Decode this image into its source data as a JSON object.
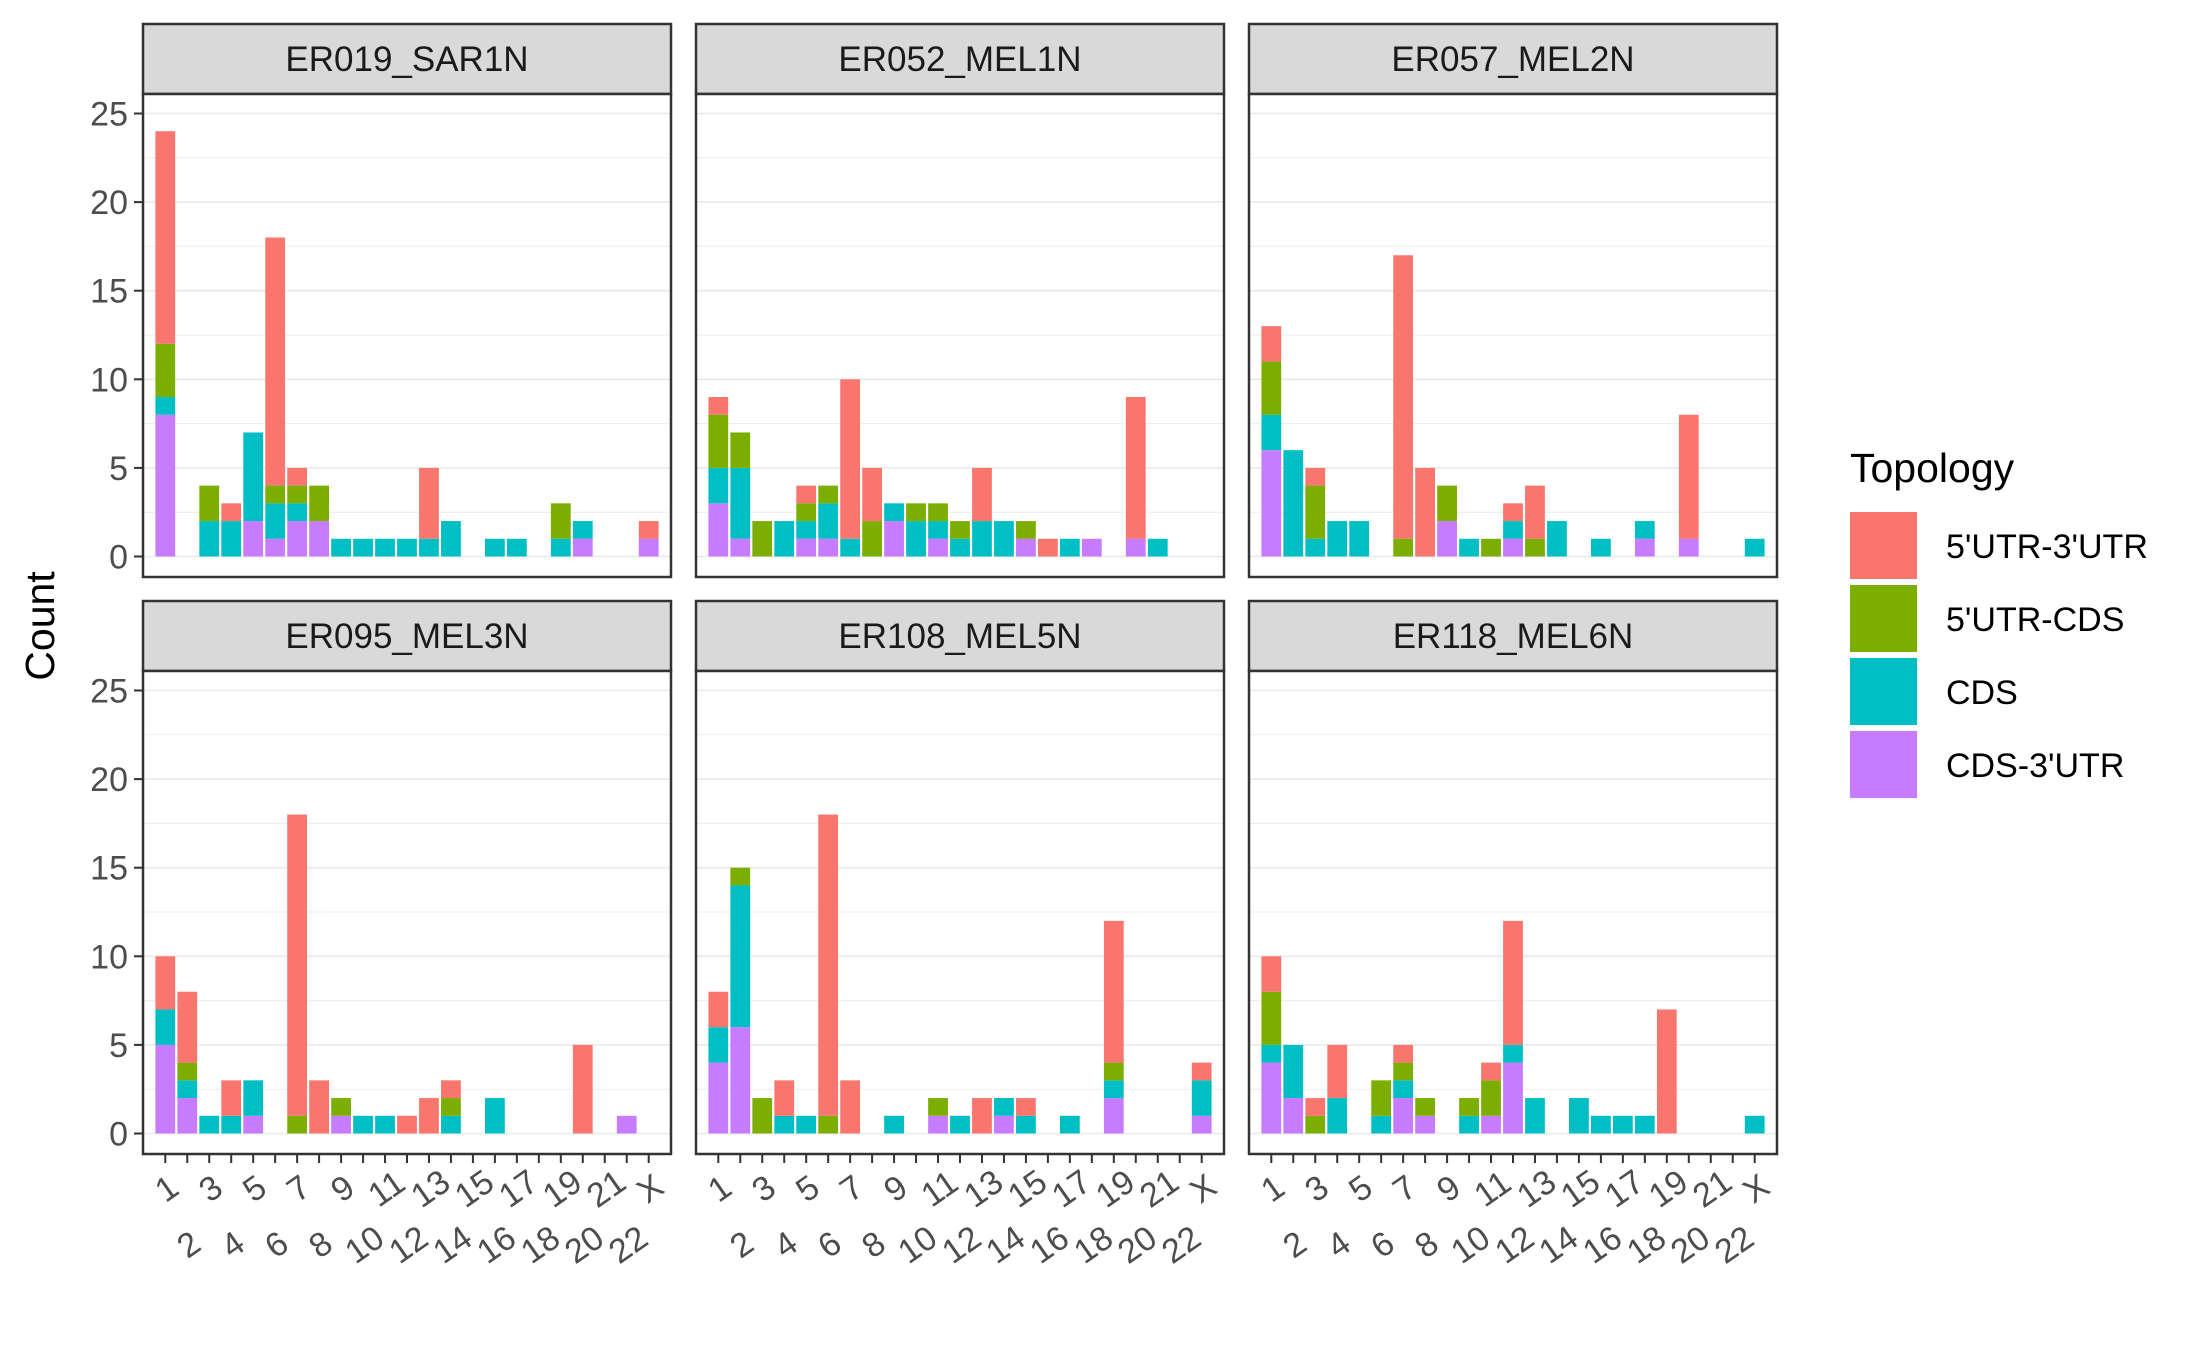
{
  "chart_data": {
    "type": "bar",
    "stacked": true,
    "facet_layout": "2x3 grid",
    "ylabel": "Count",
    "xlabel": "",
    "ylim": [
      0,
      26
    ],
    "yticks": [
      0,
      5,
      10,
      15,
      20,
      25
    ],
    "grid": true,
    "categories": [
      "1",
      "2",
      "3",
      "4",
      "5",
      "6",
      "7",
      "8",
      "9",
      "10",
      "11",
      "12",
      "13",
      "14",
      "15",
      "16",
      "17",
      "18",
      "19",
      "20",
      "21",
      "22",
      "X"
    ],
    "legend": {
      "title": "Topology",
      "position": "right",
      "items": [
        {
          "name": "5'UTR-3'UTR",
          "color": "#F8766D"
        },
        {
          "name": "5'UTR-CDS",
          "color": "#7CAE00"
        },
        {
          "name": "CDS",
          "color": "#00BFC4"
        },
        {
          "name": "CDS-3'UTR",
          "color": "#C77CFF"
        }
      ]
    },
    "stack_order_bottom_to_top": [
      "CDS-3'UTR",
      "CDS",
      "5'UTR-CDS",
      "5'UTR-3'UTR"
    ],
    "panels": [
      {
        "title": "ER019_SAR1N",
        "series": [
          {
            "name": "5'UTR-3'UTR",
            "values": [
              12,
              0,
              0,
              1,
              0,
              14,
              1,
              0,
              0,
              0,
              0,
              0,
              4,
              0,
              0,
              0,
              0,
              0,
              0,
              0,
              0,
              0,
              1
            ]
          },
          {
            "name": "5'UTR-CDS",
            "values": [
              3,
              0,
              2,
              0,
              0,
              1,
              1,
              2,
              0,
              0,
              0,
              0,
              0,
              0,
              0,
              0,
              0,
              0,
              2,
              0,
              0,
              0,
              0
            ]
          },
          {
            "name": "CDS",
            "values": [
              1,
              0,
              2,
              2,
              5,
              2,
              1,
              0,
              1,
              1,
              1,
              1,
              1,
              2,
              0,
              1,
              1,
              0,
              1,
              1,
              0,
              0,
              0
            ]
          },
          {
            "name": "CDS-3'UTR",
            "values": [
              8,
              0,
              0,
              0,
              2,
              1,
              2,
              2,
              0,
              0,
              0,
              0,
              0,
              0,
              0,
              0,
              0,
              0,
              0,
              1,
              0,
              0,
              1
            ]
          }
        ]
      },
      {
        "title": "ER052_MEL1N",
        "series": [
          {
            "name": "5'UTR-3'UTR",
            "values": [
              1,
              0,
              0,
              0,
              1,
              0,
              9,
              3,
              0,
              0,
              0,
              0,
              3,
              0,
              0,
              1,
              0,
              0,
              0,
              8,
              0,
              0,
              0
            ]
          },
          {
            "name": "5'UTR-CDS",
            "values": [
              3,
              2,
              2,
              0,
              1,
              1,
              0,
              2,
              0,
              1,
              1,
              1,
              0,
              0,
              1,
              0,
              0,
              0,
              0,
              0,
              0,
              0,
              0
            ]
          },
          {
            "name": "CDS",
            "values": [
              2,
              4,
              0,
              2,
              1,
              2,
              1,
              0,
              1,
              2,
              1,
              1,
              2,
              2,
              0,
              0,
              1,
              0,
              0,
              0,
              1,
              0,
              0
            ]
          },
          {
            "name": "CDS-3'UTR",
            "values": [
              3,
              1,
              0,
              0,
              1,
              1,
              0,
              0,
              2,
              0,
              1,
              0,
              0,
              0,
              1,
              0,
              0,
              1,
              0,
              1,
              0,
              0,
              0
            ]
          }
        ]
      },
      {
        "title": "ER057_MEL2N",
        "series": [
          {
            "name": "5'UTR-3'UTR",
            "values": [
              2,
              0,
              1,
              0,
              0,
              0,
              16,
              5,
              0,
              0,
              0,
              1,
              3,
              0,
              0,
              0,
              0,
              0,
              0,
              7,
              0,
              0,
              0
            ]
          },
          {
            "name": "5'UTR-CDS",
            "values": [
              3,
              0,
              3,
              0,
              0,
              0,
              1,
              0,
              2,
              0,
              1,
              0,
              1,
              0,
              0,
              0,
              0,
              0,
              0,
              0,
              0,
              0,
              0
            ]
          },
          {
            "name": "CDS",
            "values": [
              2,
              6,
              1,
              2,
              2,
              0,
              0,
              0,
              0,
              1,
              0,
              1,
              0,
              2,
              0,
              1,
              0,
              1,
              0,
              0,
              0,
              0,
              1
            ]
          },
          {
            "name": "CDS-3'UTR",
            "values": [
              6,
              0,
              0,
              0,
              0,
              0,
              0,
              0,
              2,
              0,
              0,
              1,
              0,
              0,
              0,
              0,
              0,
              1,
              0,
              1,
              0,
              0,
              0
            ]
          }
        ]
      },
      {
        "title": "ER095_MEL3N",
        "series": [
          {
            "name": "5'UTR-3'UTR",
            "values": [
              3,
              4,
              0,
              2,
              0,
              0,
              17,
              3,
              0,
              0,
              0,
              1,
              2,
              1,
              0,
              0,
              0,
              0,
              0,
              5,
              0,
              0,
              0
            ]
          },
          {
            "name": "5'UTR-CDS",
            "values": [
              0,
              1,
              0,
              0,
              0,
              0,
              1,
              0,
              1,
              0,
              0,
              0,
              0,
              1,
              0,
              0,
              0,
              0,
              0,
              0,
              0,
              0,
              0
            ]
          },
          {
            "name": "CDS",
            "values": [
              2,
              1,
              1,
              1,
              2,
              0,
              0,
              0,
              0,
              1,
              1,
              0,
              0,
              1,
              0,
              2,
              0,
              0,
              0,
              0,
              0,
              0,
              0
            ]
          },
          {
            "name": "CDS-3'UTR",
            "values": [
              5,
              2,
              0,
              0,
              1,
              0,
              0,
              0,
              1,
              0,
              0,
              0,
              0,
              0,
              0,
              0,
              0,
              0,
              0,
              0,
              0,
              1,
              0
            ]
          }
        ]
      },
      {
        "title": "ER108_MEL5N",
        "series": [
          {
            "name": "5'UTR-3'UTR",
            "values": [
              2,
              0,
              0,
              2,
              0,
              17,
              3,
              0,
              0,
              0,
              0,
              0,
              2,
              0,
              1,
              0,
              0,
              0,
              8,
              0,
              0,
              0,
              1
            ]
          },
          {
            "name": "5'UTR-CDS",
            "values": [
              0,
              1,
              2,
              0,
              0,
              1,
              0,
              0,
              0,
              0,
              1,
              0,
              0,
              0,
              0,
              0,
              0,
              0,
              1,
              0,
              0,
              0,
              0
            ]
          },
          {
            "name": "CDS",
            "values": [
              2,
              8,
              0,
              1,
              1,
              0,
              0,
              0,
              1,
              0,
              0,
              1,
              0,
              1,
              1,
              0,
              1,
              0,
              1,
              0,
              0,
              0,
              2
            ]
          },
          {
            "name": "CDS-3'UTR",
            "values": [
              4,
              6,
              0,
              0,
              0,
              0,
              0,
              0,
              0,
              0,
              1,
              0,
              0,
              1,
              0,
              0,
              0,
              0,
              2,
              0,
              0,
              0,
              1
            ]
          }
        ]
      },
      {
        "title": "ER118_MEL6N",
        "series": [
          {
            "name": "5'UTR-3'UTR",
            "values": [
              2,
              0,
              1,
              3,
              0,
              0,
              1,
              0,
              0,
              0,
              1,
              7,
              0,
              0,
              0,
              0,
              0,
              0,
              7,
              0,
              0,
              0,
              0
            ]
          },
          {
            "name": "5'UTR-CDS",
            "values": [
              3,
              0,
              1,
              0,
              0,
              2,
              1,
              1,
              0,
              1,
              2,
              0,
              0,
              0,
              0,
              0,
              0,
              0,
              0,
              0,
              0,
              0,
              0
            ]
          },
          {
            "name": "CDS",
            "values": [
              1,
              3,
              0,
              2,
              0,
              1,
              1,
              0,
              0,
              1,
              0,
              1,
              2,
              0,
              2,
              1,
              1,
              1,
              0,
              0,
              0,
              0,
              1
            ]
          },
          {
            "name": "CDS-3'UTR",
            "values": [
              4,
              2,
              0,
              0,
              0,
              0,
              2,
              1,
              0,
              0,
              1,
              4,
              0,
              0,
              0,
              0,
              0,
              0,
              0,
              0,
              0,
              0,
              0
            ]
          }
        ]
      }
    ]
  }
}
